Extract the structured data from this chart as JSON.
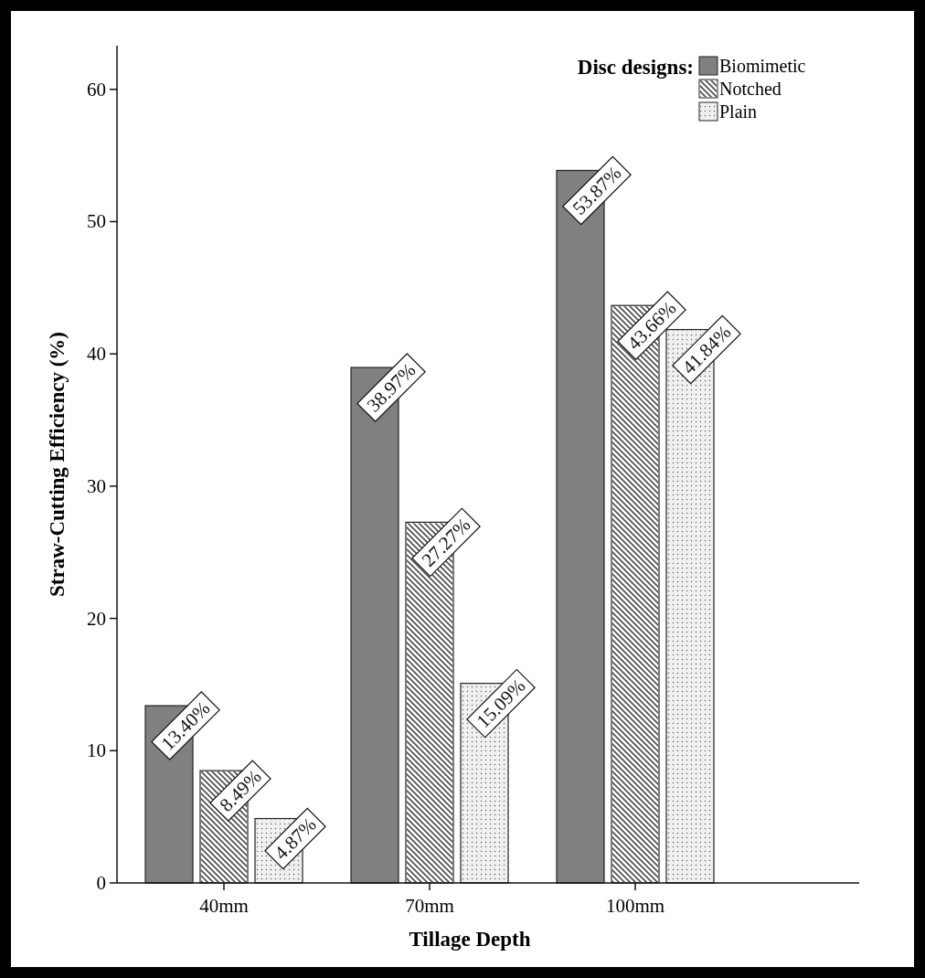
{
  "chart_data": {
    "type": "bar",
    "xlabel": "Tillage Depth",
    "ylabel": "Straw-Cutting Efficiency (%)",
    "legend_title": "Disc designs:",
    "categories": [
      "40mm",
      "70mm",
      "100mm"
    ],
    "series": [
      {
        "name": "Biomimetic",
        "color": "#808080",
        "values": [
          13.4,
          38.97,
          53.87
        ],
        "value_labels": [
          "13.40%",
          "38.97%",
          "53.87%"
        ]
      },
      {
        "name": "Notched",
        "color": "#ffffff",
        "values": [
          8.49,
          27.27,
          43.66
        ],
        "value_labels": [
          "8.49%",
          "27.27%",
          "43.66%"
        ]
      },
      {
        "name": "Plain",
        "color": "#f0f0f0",
        "values": [
          4.87,
          15.09,
          41.84
        ],
        "value_labels": [
          "4.87%",
          "15.09%",
          "41.84%"
        ]
      }
    ],
    "ylim": [
      0,
      63.3
    ],
    "yticks": [
      0,
      10,
      20,
      30,
      40,
      50,
      60
    ],
    "legend": "top right",
    "grid": false
  }
}
